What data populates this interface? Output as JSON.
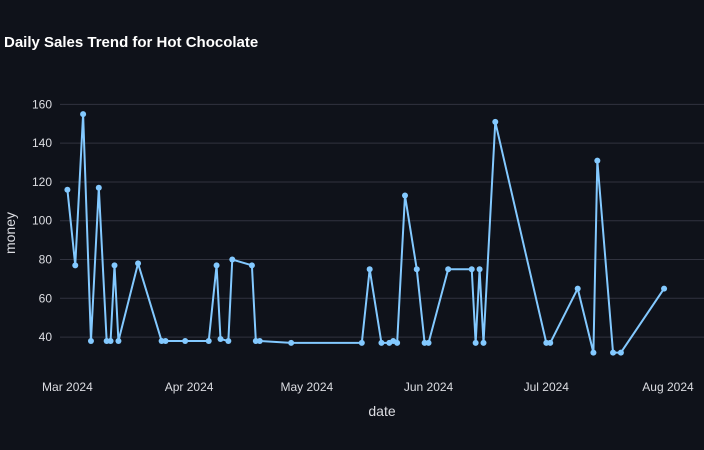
{
  "chart_data": {
    "type": "line",
    "title": "Daily Sales Trend for Hot Chocolate",
    "xlabel": "date",
    "ylabel": "money",
    "xlim": [
      "2024-02-22",
      "2024-08-01"
    ],
    "ylim": [
      22,
      170
    ],
    "x_ticks": [
      {
        "date": "2024-03-01",
        "label": "Mar 2024"
      },
      {
        "date": "2024-04-01",
        "label": "Apr 2024"
      },
      {
        "date": "2024-05-01",
        "label": "May 2024"
      },
      {
        "date": "2024-06-01",
        "label": "Jun 2024"
      },
      {
        "date": "2024-07-01",
        "label": "Jul 2024"
      },
      {
        "date": "2024-08-01",
        "label": "Aug 2024"
      }
    ],
    "y_ticks": [
      40,
      60,
      80,
      100,
      120,
      140,
      160
    ],
    "grid": true,
    "legend": false,
    "series": [
      {
        "color": "#83c9ff",
        "x": [
          "2024-03-01",
          "2024-03-03",
          "2024-03-05",
          "2024-03-07",
          "2024-03-09",
          "2024-03-11",
          "2024-03-12",
          "2024-03-13",
          "2024-03-14",
          "2024-03-19",
          "2024-03-25",
          "2024-03-26",
          "2024-03-31",
          "2024-04-06",
          "2024-04-08",
          "2024-04-09",
          "2024-04-11",
          "2024-04-12",
          "2024-04-17",
          "2024-04-18",
          "2024-04-19",
          "2024-04-27",
          "2024-05-15",
          "2024-05-17",
          "2024-05-20",
          "2024-05-22",
          "2024-05-23",
          "2024-05-24",
          "2024-05-26",
          "2024-05-29",
          "2024-05-31",
          "2024-06-01",
          "2024-06-06",
          "2024-06-12",
          "2024-06-13",
          "2024-06-14",
          "2024-06-15",
          "2024-06-18",
          "2024-07-01",
          "2024-07-02",
          "2024-07-09",
          "2024-07-13",
          "2024-07-14",
          "2024-07-18",
          "2024-07-20",
          "2024-07-31"
        ],
        "y": [
          116,
          77,
          155,
          38,
          117,
          38,
          38,
          77,
          38,
          78,
          38,
          38,
          38,
          38,
          77,
          39,
          38,
          80,
          77,
          38,
          38,
          37,
          37,
          75,
          37,
          37,
          38,
          37,
          113,
          75,
          37,
          37,
          75,
          75,
          37,
          75,
          37,
          151,
          37,
          37,
          65,
          32,
          131,
          32,
          32,
          65
        ]
      }
    ]
  }
}
